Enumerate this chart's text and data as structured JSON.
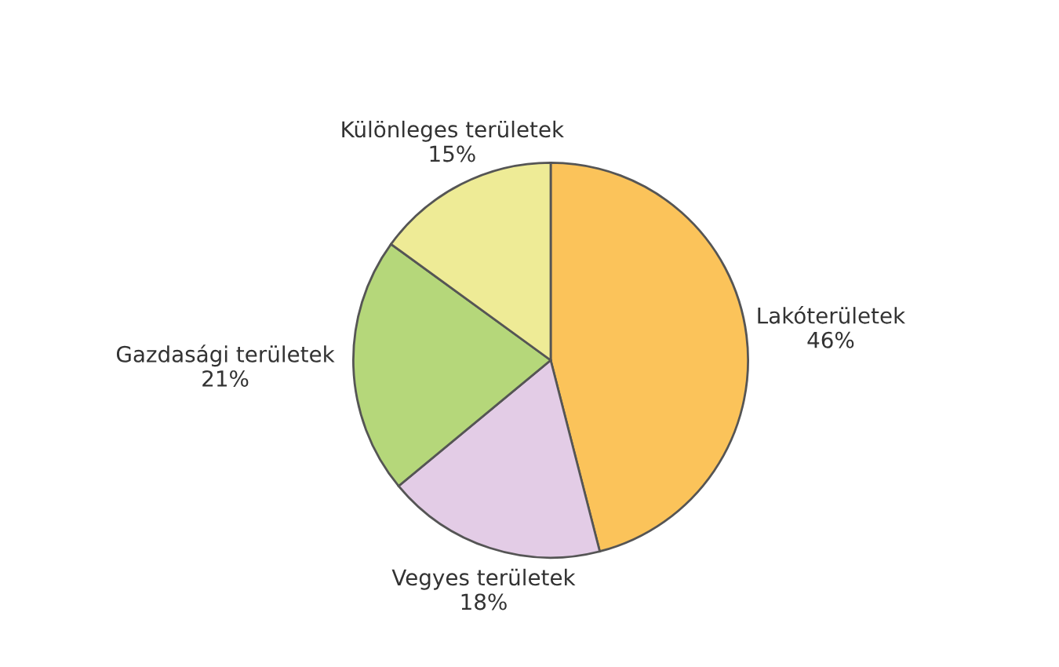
{
  "chart_data": {
    "type": "pie",
    "categories": [
      "Lakóterületek",
      "Vegyes területek",
      "Gazdasági területek",
      "Különleges területek"
    ],
    "values": [
      46,
      18,
      21,
      15
    ],
    "value_labels": [
      "46%",
      "18%",
      "21%",
      "15%"
    ],
    "colors": [
      "#fbc35a",
      "#e3cce6",
      "#b5d77a",
      "#eeeb96"
    ],
    "legend": false
  }
}
